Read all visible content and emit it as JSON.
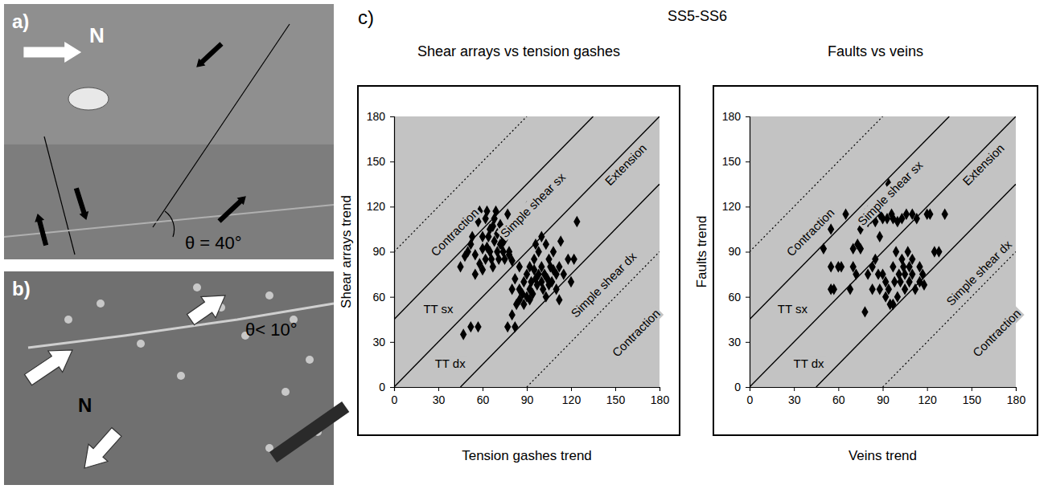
{
  "photos": [
    {
      "label": "a)",
      "north": "N",
      "angle": "θ = 40°"
    },
    {
      "label": "b)",
      "north": "N",
      "angle": "θ< 10°"
    }
  ],
  "figure": {
    "label": "c)",
    "title": "SS5-SS6"
  },
  "chart_data": [
    {
      "type": "scatter",
      "title": "Shear arrays vs tension gashes",
      "x_label": "Tension gashes trend",
      "y_label": "Shear arrays trend",
      "xlim": [
        0,
        180
      ],
      "ylim": [
        0,
        180
      ],
      "xticks": [
        0,
        30,
        60,
        90,
        120,
        150,
        180
      ],
      "yticks": [
        0,
        30,
        60,
        90,
        120,
        150,
        180
      ],
      "series": [
        {
          "type": "scatter",
          "marker": "diamond",
          "color": "#000000",
          "x": [
            45,
            50,
            52,
            55,
            57,
            58,
            60,
            60,
            62,
            62,
            63,
            64,
            65,
            65,
            66,
            67,
            68,
            68,
            69,
            70,
            70,
            71,
            72,
            73,
            74,
            75,
            75,
            76,
            77,
            78,
            80,
            55,
            58,
            60,
            63,
            48,
            53,
            67,
            72,
            74,
            47,
            52,
            57,
            77,
            82,
            80,
            83,
            85,
            85,
            87,
            88,
            88,
            90,
            90,
            92,
            92,
            93,
            94,
            95,
            95,
            96,
            97,
            98,
            98,
            100,
            100,
            101,
            102,
            103,
            104,
            105,
            106,
            107,
            108,
            110,
            110,
            112,
            113,
            115,
            118,
            120,
            122,
            124,
            80,
            82,
            85,
            78,
            90,
            86,
            100,
            96,
            105,
            108,
            112,
            103,
            92
          ],
          "y": [
            80,
            90,
            95,
            88,
            110,
            117,
            100,
            92,
            85,
            112,
            117,
            100,
            105,
            90,
            85,
            80,
            97,
            112,
            117,
            102,
            90,
            85,
            108,
            95,
            100,
            98,
            85,
            105,
            115,
            88,
            84,
            75,
            82,
            78,
            93,
            87,
            100,
            107,
            95,
            90,
            35,
            40,
            40,
            40,
            40,
            48,
            55,
            58,
            65,
            62,
            55,
            70,
            60,
            75,
            65,
            80,
            70,
            62,
            78,
            85,
            72,
            68,
            75,
            90,
            70,
            80,
            65,
            75,
            95,
            72,
            85,
            80,
            70,
            90,
            75,
            65,
            80,
            97,
            75,
            85,
            70,
            85,
            110,
            65,
            72,
            80,
            90,
            120,
            112,
            100,
            95,
            68,
            78,
            58,
            60,
            58
          ]
        },
        {
          "type": "line",
          "line_style": "dotted",
          "color": "#000000",
          "x": [
            0,
            90
          ],
          "y": [
            90,
            180
          ]
        },
        {
          "type": "line",
          "line_style": "solid",
          "color": "#000000",
          "x": [
            0,
            135
          ],
          "y": [
            45,
            180
          ]
        },
        {
          "type": "line",
          "line_style": "solid",
          "color": "#000000",
          "x": [
            0,
            180
          ],
          "y": [
            0,
            180
          ]
        },
        {
          "type": "line",
          "line_style": "solid",
          "color": "#000000",
          "x": [
            45,
            180
          ],
          "y": [
            0,
            135
          ]
        },
        {
          "type": "line",
          "line_style": "dotted",
          "color": "#000000",
          "x": [
            90,
            180
          ],
          "y": [
            0,
            90
          ]
        }
      ],
      "region_labels": [
        {
          "text": "Contraction",
          "x": 41,
          "y": 103
        },
        {
          "text": "Simple shear sx",
          "x": 94,
          "y": 121
        },
        {
          "text": "Extension",
          "x": 157,
          "y": 148
        },
        {
          "text": "Simple shear dx",
          "x": 142,
          "y": 68
        },
        {
          "text": "Contraction",
          "x": 164,
          "y": 36
        }
      ],
      "line_labels": [
        {
          "text": "TT sx",
          "x": 30,
          "y": 52
        },
        {
          "text": "TT dx",
          "x": 38,
          "y": 16
        }
      ]
    },
    {
      "type": "scatter",
      "title": "Faults vs veins",
      "x_label": "Veins trend",
      "y_label": "Faults trend",
      "xlim": [
        0,
        180
      ],
      "ylim": [
        0,
        180
      ],
      "xticks": [
        0,
        30,
        60,
        90,
        120,
        150,
        180
      ],
      "yticks": [
        0,
        30,
        60,
        90,
        120,
        150,
        180
      ],
      "series": [
        {
          "type": "scatter",
          "marker": "diamond",
          "color": "#000000",
          "x": [
            50,
            55,
            55,
            55,
            57,
            60,
            62,
            65,
            68,
            70,
            70,
            72,
            73,
            75,
            75,
            78,
            78,
            80,
            80,
            82,
            83,
            83,
            85,
            85,
            87,
            88,
            88,
            90,
            90,
            92,
            93,
            94,
            94,
            95,
            96,
            97,
            97,
            98,
            99,
            100,
            100,
            101,
            102,
            103,
            104,
            105,
            105,
            106,
            107,
            108,
            108,
            110,
            110,
            112,
            113,
            115,
            117,
            118,
            120,
            122,
            125,
            128,
            132,
            92,
            97,
            85,
            80,
            88,
            103,
            110,
            115
          ],
          "y": [
            92,
            105,
            80,
            65,
            65,
            80,
            80,
            115,
            65,
            80,
            92,
            75,
            95,
            92,
            105,
            50,
            115,
            110,
            117,
            112,
            65,
            80,
            110,
            115,
            75,
            100,
            115,
            112,
            75,
            70,
            112,
            135,
            65,
            55,
            115,
            112,
            80,
            70,
            90,
            60,
            110,
            75,
            70,
            85,
            80,
            65,
            75,
            115,
            90,
            80,
            70,
            75,
            85,
            65,
            112,
            70,
            75,
            68,
            115,
            115,
            90,
            90,
            115,
            60,
            55,
            85,
            75,
            65,
            112,
            115,
            80
          ]
        },
        {
          "type": "line",
          "line_style": "dotted",
          "color": "#000000",
          "x": [
            0,
            90
          ],
          "y": [
            90,
            180
          ]
        },
        {
          "type": "line",
          "line_style": "solid",
          "color": "#000000",
          "x": [
            0,
            135
          ],
          "y": [
            45,
            180
          ]
        },
        {
          "type": "line",
          "line_style": "solid",
          "color": "#000000",
          "x": [
            0,
            180
          ],
          "y": [
            0,
            180
          ]
        },
        {
          "type": "line",
          "line_style": "solid",
          "color": "#000000",
          "x": [
            45,
            180
          ],
          "y": [
            0,
            135
          ]
        },
        {
          "type": "line",
          "line_style": "dotted",
          "color": "#000000",
          "x": [
            90,
            180
          ],
          "y": [
            0,
            90
          ]
        }
      ],
      "region_labels": [
        {
          "text": "Contraction",
          "x": 41,
          "y": 103
        },
        {
          "text": "Simple shear sx",
          "x": 95,
          "y": 129
        },
        {
          "text": "Extension",
          "x": 158,
          "y": 148
        },
        {
          "text": "Simple shear dx",
          "x": 155,
          "y": 76
        },
        {
          "text": "Contraction",
          "x": 167,
          "y": 36
        }
      ],
      "line_labels": [
        {
          "text": "TT sx",
          "x": 29,
          "y": 52
        },
        {
          "text": "TT dx",
          "x": 40,
          "y": 16
        }
      ]
    }
  ]
}
